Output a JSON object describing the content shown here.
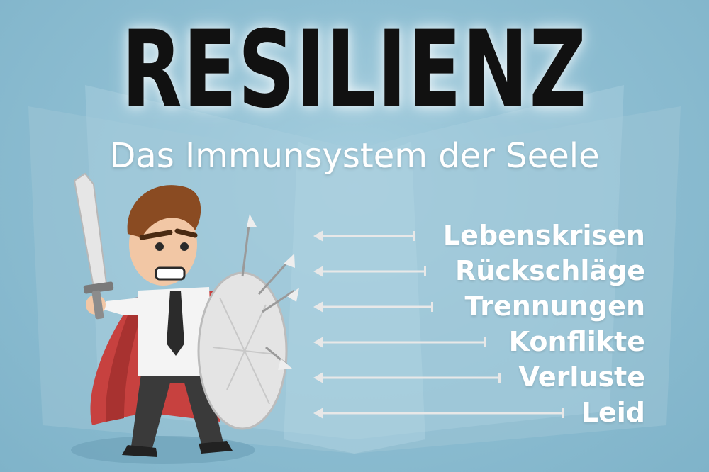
{
  "title": "RESILIENZ",
  "subtitle": "Das Immunsystem der Seele",
  "stressors": [
    {
      "label": "Lebenskrisen"
    },
    {
      "label": "Rückschläge"
    },
    {
      "label": "Trennungen"
    },
    {
      "label": "Konflikte"
    },
    {
      "label": "Verluste"
    },
    {
      "label": "Leid"
    }
  ],
  "colors": {
    "background": "#8fbfd3",
    "title": "#111111",
    "text": "#ffffff",
    "cape": "#c7413f",
    "hair": "#8a4b22",
    "suit": "#3a3a3a"
  },
  "icons": [
    "sword-icon",
    "shield-icon",
    "arrow-left-icon"
  ]
}
